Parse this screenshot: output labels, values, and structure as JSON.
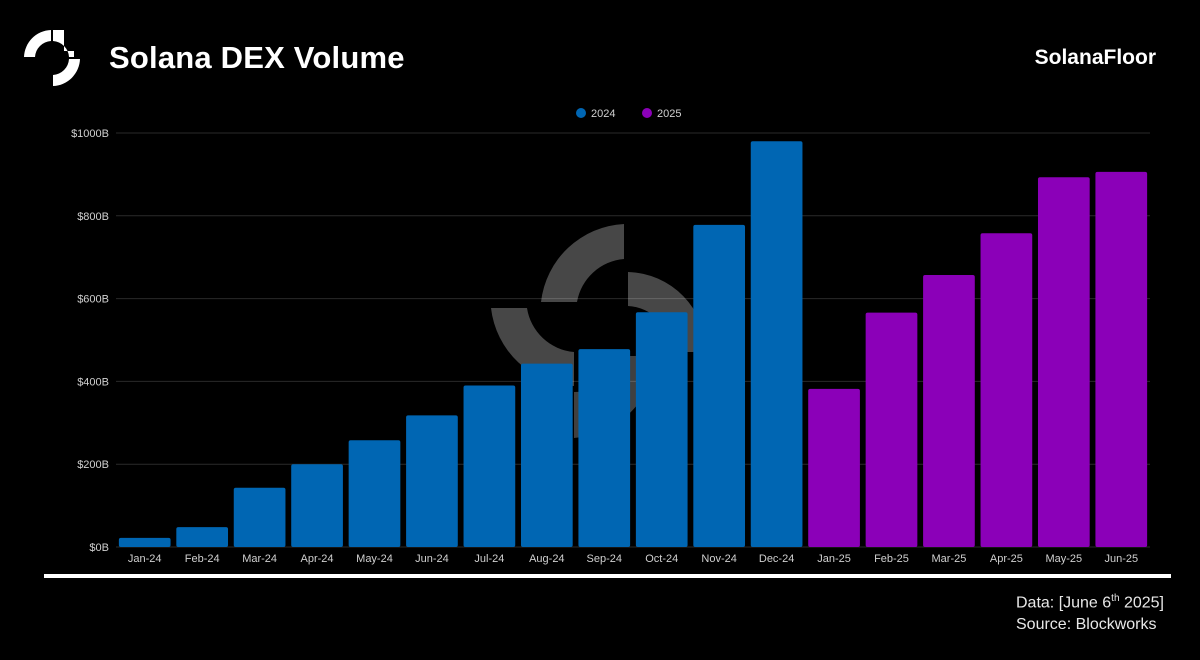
{
  "header": {
    "title": "Solana DEX Volume",
    "brand": "SolanaFloor"
  },
  "footer": {
    "data_prefix": "Data: [June 6",
    "data_superscript": "th",
    "data_suffix": " 2025]",
    "source": "Source: Blockworks"
  },
  "colors": {
    "series_2024": "#0066b3",
    "series_2025": "#8b00b8",
    "background": "#000000"
  },
  "icons": {
    "logo": "solanafloor-logo-icon",
    "watermark": "solanafloor-watermark-icon"
  },
  "chart_data": {
    "type": "bar",
    "title": "Solana DEX Volume",
    "xlabel": "",
    "ylabel": "",
    "categories": [
      "Jan-24",
      "Feb-24",
      "Mar-24",
      "Apr-24",
      "May-24",
      "Jun-24",
      "Jul-24",
      "Aug-24",
      "Sep-24",
      "Oct-24",
      "Nov-24",
      "Dec-24",
      "Jan-25",
      "Feb-25",
      "Mar-25",
      "Apr-25",
      "May-25",
      "Jun-25"
    ],
    "series": [
      {
        "name": "2024",
        "values": [
          22,
          48,
          143,
          200,
          258,
          318,
          390,
          443,
          478,
          567,
          778,
          980,
          null,
          null,
          null,
          null,
          null,
          null
        ]
      },
      {
        "name": "2025",
        "values": [
          null,
          null,
          null,
          null,
          null,
          null,
          null,
          null,
          null,
          null,
          null,
          null,
          382,
          566,
          657,
          758,
          893,
          906
        ]
      }
    ],
    "ylim": [
      0,
      1000
    ],
    "yticks": [
      0,
      200,
      400,
      600,
      800,
      1000
    ],
    "ytick_labels": [
      "$0B",
      "$200B",
      "$400B",
      "$600B",
      "$800B",
      "$1000B"
    ],
    "legend": [
      {
        "name": "2024",
        "color": "#0066b3"
      },
      {
        "name": "2025",
        "color": "#8b00b8"
      }
    ],
    "legend_position": "top-center",
    "grid": true
  }
}
